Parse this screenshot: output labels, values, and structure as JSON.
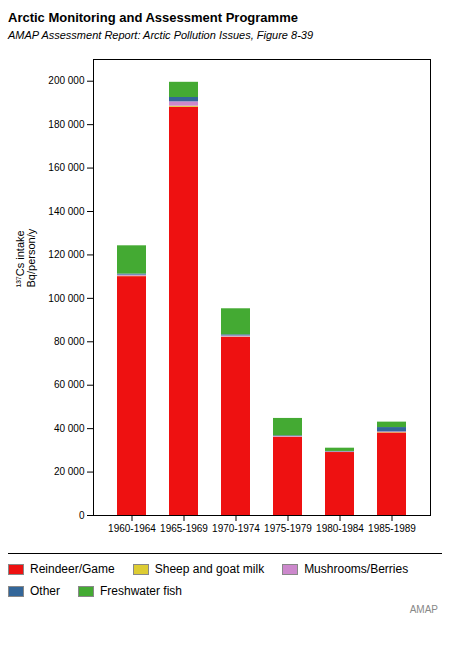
{
  "chart_data": {
    "type": "bar",
    "stacked": true,
    "title": "Arctic Monitoring and Assessment Programme",
    "subtitle": "AMAP Assessment Report: Arctic Pollution Issues, Figure 8-39",
    "y_label": "¹³⁷Cs intake\nBq/person/y",
    "categories": [
      "1960-1964",
      "1965-1969",
      "1970-1974",
      "1975-1979",
      "1980-1984",
      "1985-1989"
    ],
    "series": [
      {
        "name": "Reindeer/Game",
        "color": "#ee1111",
        "values": [
          110000,
          188000,
          82000,
          36000,
          29000,
          38000
        ]
      },
      {
        "name": "Sheep and goat milk",
        "color": "#ddcc33",
        "values": [
          200,
          500,
          200,
          100,
          100,
          200
        ]
      },
      {
        "name": "Mushrooms/Berries",
        "color": "#cc88cc",
        "values": [
          500,
          2000,
          500,
          300,
          200,
          300
        ]
      },
      {
        "name": "Other",
        "color": "#336699",
        "values": [
          500,
          2000,
          500,
          300,
          200,
          2000
        ]
      },
      {
        "name": "Freshwater fish",
        "color": "#44aa33",
        "values": [
          13000,
          7000,
          12000,
          8000,
          1500,
          2500
        ]
      }
    ],
    "ylim": [
      0,
      210000
    ],
    "yticks": [
      0,
      {
        "value": 20000,
        "label": "20 000"
      },
      {
        "value": 40000,
        "label": "40 000"
      },
      {
        "value": 60000,
        "label": "60 000"
      },
      {
        "value": 80000,
        "label": "80 000"
      },
      {
        "value": 100000,
        "label": "100 000"
      },
      {
        "value": 120000,
        "label": "120 000"
      },
      {
        "value": 140000,
        "label": "140 000"
      },
      {
        "value": 160000,
        "label": "160 000"
      },
      {
        "value": 180000,
        "label": "180 000"
      },
      {
        "value": 200000,
        "label": "200 000"
      }
    ],
    "grid": false,
    "legend": "bottom",
    "annotations": [
      "AMAP"
    ]
  }
}
